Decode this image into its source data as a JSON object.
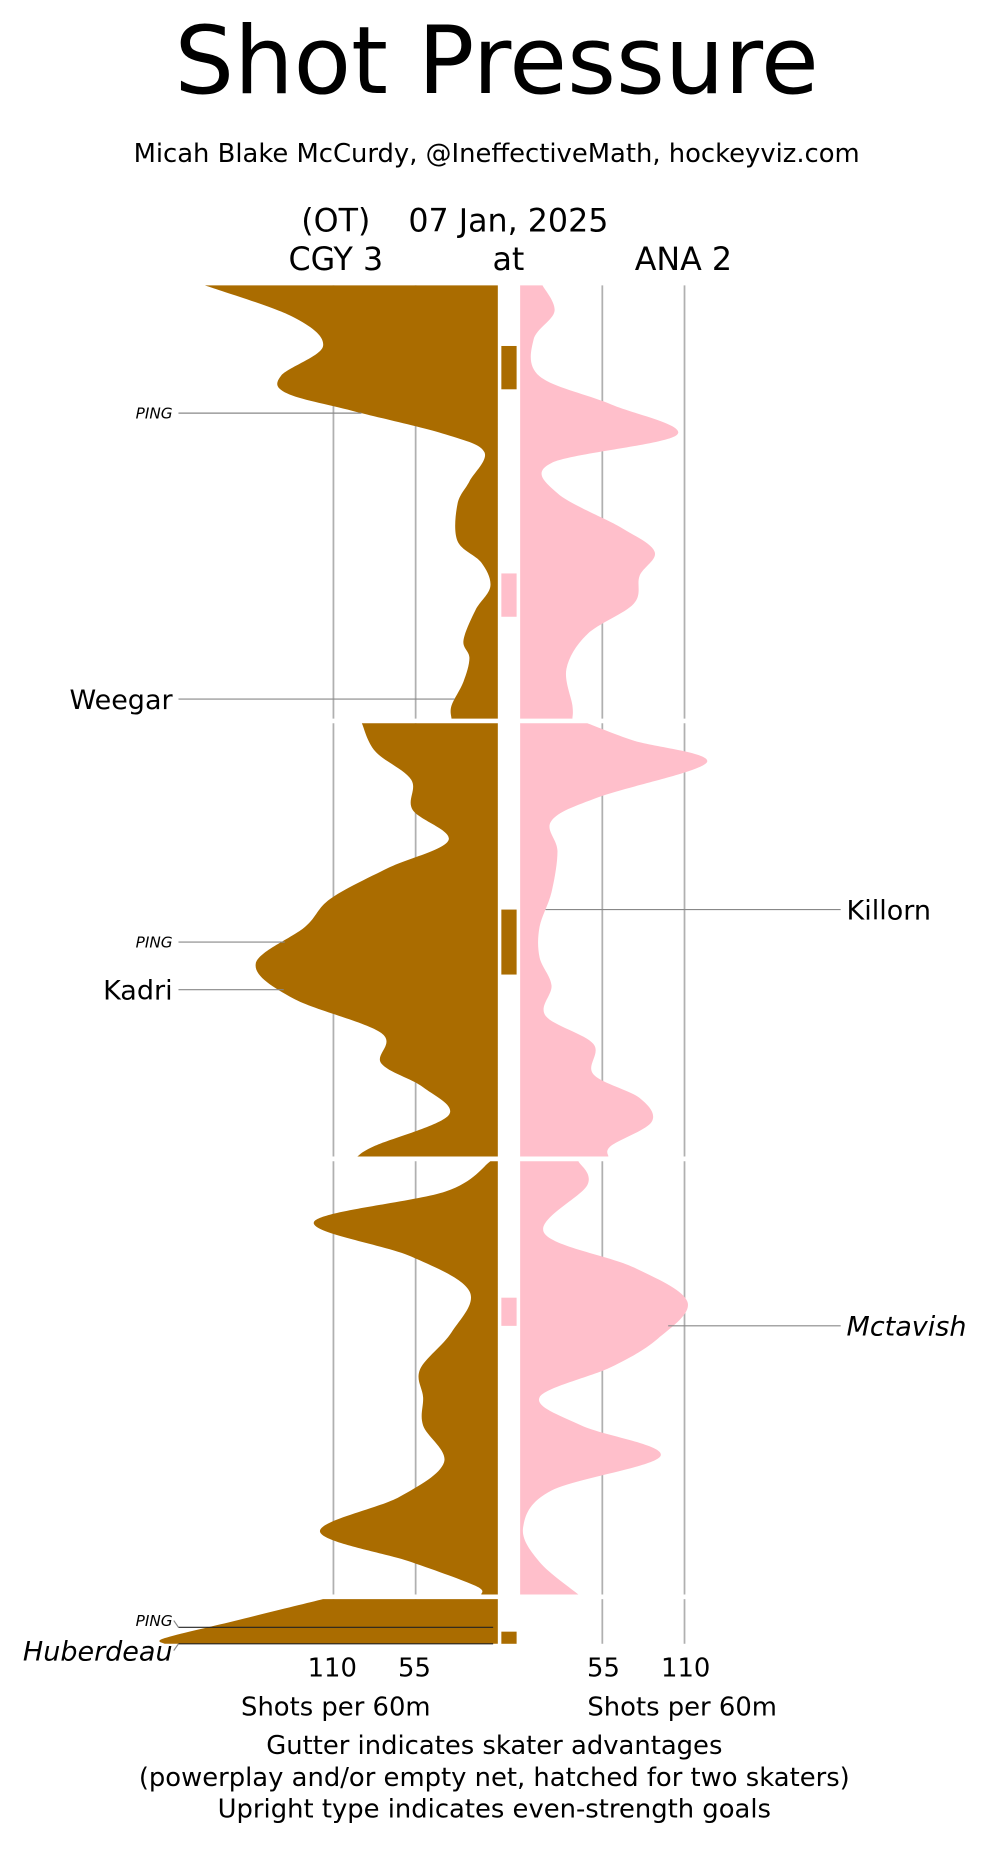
{
  "chart_data": {
    "type": "area",
    "title": "Shot Pressure",
    "subtitle": "Micah Blake McCurdy, @IneffectiveMath, hockeyviz.com",
    "game": {
      "overtime_label": "(OT)",
      "date": "07 Jan, 2025",
      "away": "CGY 3",
      "at": "at",
      "home": "ANA 2"
    },
    "colors": {
      "away": "#aa6c00",
      "home": "#ffbfcb",
      "grid": "#b0b0b0"
    },
    "xlabel_left": "Shots per 60m",
    "xlabel_right": "Shots per 60m",
    "ticks": [
      55,
      110
    ],
    "tick_labels_left": [
      "110",
      "55"
    ],
    "tick_labels_right": [
      "55",
      "110"
    ],
    "notes": [
      "Gutter indicates skater advantages",
      "(powerplay and/or empty net, hatched for two skaters)",
      "Upright type indicates even-strength goals"
    ],
    "periods": [
      {
        "period": 1,
        "length_min": 20,
        "away": [
          [
            0,
            196
          ],
          [
            1.46,
            137
          ],
          [
            2.82,
            117
          ],
          [
            4.17,
            145
          ],
          [
            4.99,
            141
          ],
          [
            5.8,
            97
          ],
          [
            6.88,
            35
          ],
          [
            7.7,
            9
          ],
          [
            9.05,
            19
          ],
          [
            10.1,
            27
          ],
          [
            11.8,
            27
          ],
          [
            12.8,
            11
          ],
          [
            13.9,
            5
          ],
          [
            15.0,
            15
          ],
          [
            16.4,
            23
          ],
          [
            17.2,
            19
          ],
          [
            18.3,
            23
          ],
          [
            19.4,
            31
          ],
          [
            20,
            31
          ]
        ],
        "home": [
          [
            0,
            15
          ],
          [
            1.2,
            23
          ],
          [
            2.5,
            9
          ],
          [
            4.2,
            13
          ],
          [
            5.5,
            61
          ],
          [
            6.9,
            105
          ],
          [
            8.2,
            21
          ],
          [
            9.6,
            25
          ],
          [
            11.2,
            68
          ],
          [
            12.3,
            90
          ],
          [
            13.4,
            80
          ],
          [
            14.7,
            76
          ],
          [
            16.1,
            45
          ],
          [
            17.7,
            31
          ],
          [
            19.4,
            35
          ],
          [
            20,
            35
          ]
        ]
      },
      {
        "period": 2,
        "length_min": 20,
        "away": [
          [
            0,
            91
          ],
          [
            1.3,
            82
          ],
          [
            2.6,
            58
          ],
          [
            4.0,
            57
          ],
          [
            5.4,
            33
          ],
          [
            6.7,
            74
          ],
          [
            8.1,
            112
          ],
          [
            9.4,
            129
          ],
          [
            11.1,
            162
          ],
          [
            12.7,
            137
          ],
          [
            14.3,
            78
          ],
          [
            15.7,
            78
          ],
          [
            16.8,
            50
          ],
          [
            18.1,
            33
          ],
          [
            19.5,
            82
          ],
          [
            20,
            94
          ]
        ],
        "home": [
          [
            0,
            45
          ],
          [
            0.8,
            76
          ],
          [
            1.8,
            125
          ],
          [
            3.4,
            53
          ],
          [
            4.5,
            21
          ],
          [
            5.9,
            25
          ],
          [
            7.8,
            21
          ],
          [
            9.4,
            13
          ],
          [
            10.8,
            13
          ],
          [
            12.1,
            21
          ],
          [
            13.5,
            17
          ],
          [
            14.8,
            49
          ],
          [
            16.2,
            49
          ],
          [
            17.3,
            80
          ],
          [
            18.4,
            88
          ],
          [
            19.5,
            61
          ],
          [
            20,
            59
          ]
        ]
      },
      {
        "period": 3,
        "length_min": 20,
        "away": [
          [
            0,
            5
          ],
          [
            1.4,
            35
          ],
          [
            2.8,
            123
          ],
          [
            4.4,
            58
          ],
          [
            6.0,
            19
          ],
          [
            7.9,
            31
          ],
          [
            9.6,
            52
          ],
          [
            10.9,
            50
          ],
          [
            12.2,
            50
          ],
          [
            13.9,
            36
          ],
          [
            15.5,
            66
          ],
          [
            17.1,
            119
          ],
          [
            18.5,
            58
          ],
          [
            19.6,
            15
          ],
          [
            20,
            11
          ]
        ],
        "home": [
          [
            0,
            39
          ],
          [
            1.1,
            45
          ],
          [
            3.3,
            16
          ],
          [
            4.9,
            76
          ],
          [
            6.5,
            112
          ],
          [
            8.2,
            92
          ],
          [
            9.5,
            61
          ],
          [
            10.9,
            13
          ],
          [
            12.2,
            41
          ],
          [
            13.6,
            94
          ],
          [
            15.2,
            21
          ],
          [
            16.9,
            2
          ],
          [
            18.5,
            13
          ],
          [
            20,
            39
          ]
        ]
      },
      {
        "period": 4,
        "length_min": 2.06,
        "away": [
          [
            0,
            117
          ],
          [
            1.0,
            176
          ],
          [
            1.8,
            223
          ],
          [
            2.06,
            223
          ]
        ],
        "home": []
      }
    ],
    "advantages": [
      {
        "team": "away",
        "period": 1,
        "start": 2.8,
        "end": 4.8
      },
      {
        "team": "home",
        "period": 1,
        "start": 13.3,
        "end": 15.3
      },
      {
        "team": "away",
        "period": 2,
        "start": 8.6,
        "end": 11.6
      },
      {
        "team": "home",
        "period": 3,
        "start": 6.3,
        "end": 7.6
      },
      {
        "team": "away",
        "period": 4,
        "start": 1.5,
        "end": 2.06
      }
    ],
    "goals": [
      {
        "team": "away",
        "period": 1,
        "time": 5.9,
        "scorer": "PING",
        "even_strength": false,
        "small": true
      },
      {
        "team": "away",
        "period": 1,
        "time": 19.1,
        "scorer": "Weegar",
        "even_strength": true
      },
      {
        "team": "away",
        "period": 2,
        "time": 10.1,
        "scorer": "PING",
        "even_strength": false,
        "small": true
      },
      {
        "team": "away",
        "period": 2,
        "time": 12.3,
        "scorer": "Kadri",
        "even_strength": true
      },
      {
        "team": "home",
        "period": 2,
        "time": 8.6,
        "scorer": "Killorn",
        "even_strength": true
      },
      {
        "team": "home",
        "period": 3,
        "time": 7.6,
        "scorer": "Mctavish",
        "even_strength": false
      },
      {
        "team": "away",
        "period": 4,
        "time": 1.3,
        "scorer": "PING",
        "even_strength": false,
        "small": true
      },
      {
        "team": "away",
        "period": 4,
        "time": 2.06,
        "scorer": "Huberdeau",
        "even_strength": false
      }
    ]
  }
}
